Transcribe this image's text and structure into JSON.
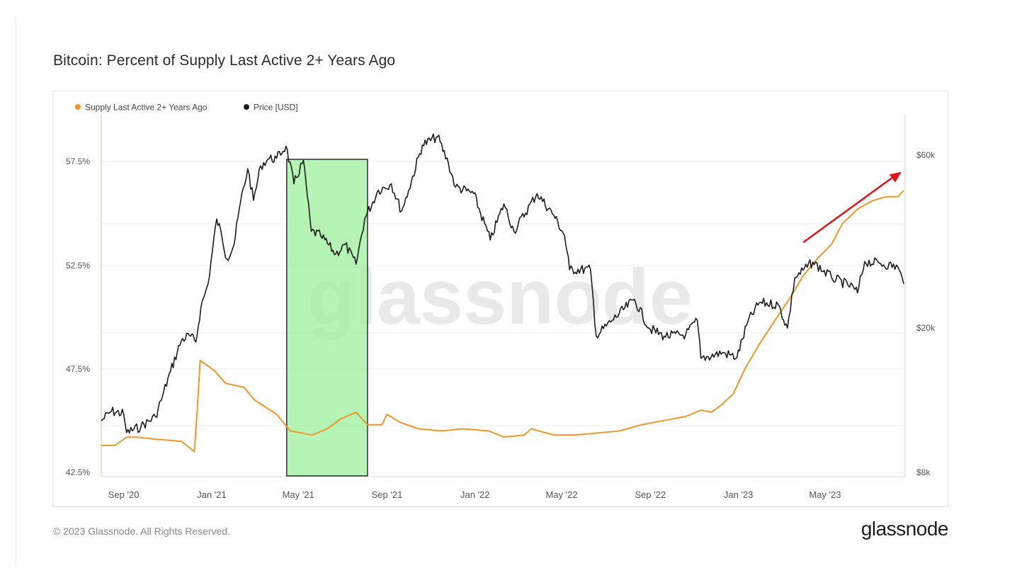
{
  "title": "Bitcoin: Percent of Supply Last Active 2+ Years Ago",
  "footer": {
    "copyright": "© 2023 Glassnode. All Rights Reserved.",
    "logo": "glassnode"
  },
  "watermark": "glassnode",
  "colors": {
    "supply": "#f0962e",
    "price": "#1c1c1c",
    "highlight_fill": "#9cf09c",
    "highlight_stroke": "#2e2e2e",
    "arrow": "#e0161a"
  },
  "chart_data": {
    "type": "line",
    "title": "Bitcoin: Percent of Supply Last Active 2+ Years Ago",
    "x_ticks": [
      "Sep '20",
      "Jan '21",
      "May '21",
      "Sep '21",
      "Jan '22",
      "May '22",
      "Sep '22",
      "Jan '23",
      "May '23"
    ],
    "y_left": {
      "ticks": [
        "57.5%",
        "52.5%",
        "47.5%",
        "42.5%"
      ],
      "range": [
        42.5,
        60
      ]
    },
    "y_right": {
      "ticks": [
        "$60k",
        "$20k",
        "$8k"
      ],
      "scale": "log",
      "range": [
        8000,
        80000
      ]
    },
    "legend_position": "top-left",
    "series": [
      {
        "name": "Supply Last Active 2+ Years Ago",
        "axis": "left",
        "color": "#f0962e",
        "points": [
          [
            "2020-08-01",
            43.8
          ],
          [
            "2020-08-20",
            43.8
          ],
          [
            "2020-09-05",
            44.2
          ],
          [
            "2020-09-20",
            44.2
          ],
          [
            "2020-10-15",
            44.1
          ],
          [
            "2020-11-20",
            44.0
          ],
          [
            "2020-12-08",
            43.5
          ],
          [
            "2020-12-12",
            45.5
          ],
          [
            "2020-12-16",
            47.9
          ],
          [
            "2021-01-05",
            47.4
          ],
          [
            "2021-01-20",
            46.8
          ],
          [
            "2021-02-15",
            46.6
          ],
          [
            "2021-03-01",
            46.0
          ],
          [
            "2021-04-01",
            45.3
          ],
          [
            "2021-04-20",
            44.5
          ],
          [
            "2021-05-20",
            44.3
          ],
          [
            "2021-06-10",
            44.6
          ],
          [
            "2021-06-30",
            45.1
          ],
          [
            "2021-07-20",
            45.4
          ],
          [
            "2021-08-05",
            44.8
          ],
          [
            "2021-08-25",
            44.8
          ],
          [
            "2021-09-01",
            45.3
          ],
          [
            "2021-09-20",
            44.9
          ],
          [
            "2021-10-15",
            44.6
          ],
          [
            "2021-11-15",
            44.5
          ],
          [
            "2021-12-15",
            44.6
          ],
          [
            "2022-01-20",
            44.5
          ],
          [
            "2022-02-10",
            44.2
          ],
          [
            "2022-03-10",
            44.3
          ],
          [
            "2022-03-20",
            44.6
          ],
          [
            "2022-04-20",
            44.3
          ],
          [
            "2022-05-20",
            44.3
          ],
          [
            "2022-06-20",
            44.4
          ],
          [
            "2022-07-20",
            44.5
          ],
          [
            "2022-08-20",
            44.8
          ],
          [
            "2022-09-20",
            45.0
          ],
          [
            "2022-10-20",
            45.2
          ],
          [
            "2022-11-10",
            45.5
          ],
          [
            "2022-11-25",
            45.4
          ],
          [
            "2022-12-10",
            45.8
          ],
          [
            "2022-12-25",
            46.3
          ],
          [
            "2023-01-10",
            47.5
          ],
          [
            "2023-02-01",
            48.8
          ],
          [
            "2023-02-20",
            49.8
          ],
          [
            "2023-03-15",
            51.0
          ],
          [
            "2023-04-01",
            52.0
          ],
          [
            "2023-04-20",
            52.8
          ],
          [
            "2023-05-10",
            53.5
          ],
          [
            "2023-05-25",
            54.5
          ],
          [
            "2023-06-15",
            55.2
          ],
          [
            "2023-07-05",
            55.6
          ],
          [
            "2023-07-25",
            55.8
          ],
          [
            "2023-08-10",
            55.8
          ],
          [
            "2023-08-18",
            56.1
          ]
        ]
      },
      {
        "name": "Price [USD]",
        "axis": "right",
        "color": "#1c1c1c",
        "points": [
          [
            "2020-08-01",
            11100
          ],
          [
            "2020-08-15",
            11800
          ],
          [
            "2020-09-01",
            11600
          ],
          [
            "2020-09-05",
            10300
          ],
          [
            "2020-09-25",
            10700
          ],
          [
            "2020-10-15",
            11400
          ],
          [
            "2020-10-25",
            13000
          ],
          [
            "2020-11-05",
            15200
          ],
          [
            "2020-11-20",
            18500
          ],
          [
            "2020-12-01",
            19100
          ],
          [
            "2020-12-10",
            18300
          ],
          [
            "2020-12-17",
            22800
          ],
          [
            "2020-12-27",
            26500
          ],
          [
            "2021-01-08",
            40000
          ],
          [
            "2021-01-15",
            36000
          ],
          [
            "2021-01-22",
            31000
          ],
          [
            "2021-02-01",
            34000
          ],
          [
            "2021-02-10",
            44500
          ],
          [
            "2021-02-20",
            55000
          ],
          [
            "2021-02-28",
            45000
          ],
          [
            "2021-03-10",
            56000
          ],
          [
            "2021-03-20",
            58500
          ],
          [
            "2021-04-01",
            58800
          ],
          [
            "2021-04-14",
            63500
          ],
          [
            "2021-04-25",
            50000
          ],
          [
            "2021-05-08",
            58000
          ],
          [
            "2021-05-19",
            37000
          ],
          [
            "2021-06-01",
            36000
          ],
          [
            "2021-06-22",
            32000
          ],
          [
            "2021-07-05",
            34000
          ],
          [
            "2021-07-20",
            30000
          ],
          [
            "2021-08-01",
            40000
          ],
          [
            "2021-08-20",
            48000
          ],
          [
            "2021-09-07",
            50000
          ],
          [
            "2021-09-21",
            42000
          ],
          [
            "2021-10-01",
            48000
          ],
          [
            "2021-10-20",
            64000
          ],
          [
            "2021-11-10",
            67500
          ],
          [
            "2021-11-25",
            57000
          ],
          [
            "2021-12-05",
            49000
          ],
          [
            "2021-12-30",
            47000
          ],
          [
            "2022-01-22",
            35000
          ],
          [
            "2022-02-10",
            44000
          ],
          [
            "2022-02-24",
            37000
          ],
          [
            "2022-03-28",
            47000
          ],
          [
            "2022-04-20",
            41000
          ],
          [
            "2022-05-05",
            36000
          ],
          [
            "2022-05-12",
            29000
          ],
          [
            "2022-06-10",
            29000
          ],
          [
            "2022-06-18",
            19000
          ],
          [
            "2022-07-10",
            21000
          ],
          [
            "2022-08-10",
            24000
          ],
          [
            "2022-08-30",
            20000
          ],
          [
            "2022-09-20",
            19000
          ],
          [
            "2022-10-20",
            19200
          ],
          [
            "2022-11-05",
            21000
          ],
          [
            "2022-11-10",
            16500
          ],
          [
            "2022-12-10",
            17100
          ],
          [
            "2022-12-30",
            16600
          ],
          [
            "2023-01-14",
            20800
          ],
          [
            "2023-01-30",
            23500
          ],
          [
            "2023-02-25",
            23200
          ],
          [
            "2023-03-10",
            20000
          ],
          [
            "2023-03-20",
            27500
          ],
          [
            "2023-04-14",
            30400
          ],
          [
            "2023-05-10",
            27600
          ],
          [
            "2023-06-10",
            25800
          ],
          [
            "2023-06-15",
            25000
          ],
          [
            "2023-06-25",
            30500
          ],
          [
            "2023-07-15",
            30200
          ],
          [
            "2023-08-10",
            29500
          ],
          [
            "2023-08-18",
            26500
          ]
        ]
      }
    ],
    "annotations": [
      {
        "type": "highlight_box",
        "x_range": [
          "2021-04-15",
          "2021-08-05"
        ]
      },
      {
        "type": "arrow",
        "from": [
          "2023-04-01",
          53.6
        ],
        "to": [
          "2023-08-15",
          57.0
        ]
      }
    ]
  }
}
